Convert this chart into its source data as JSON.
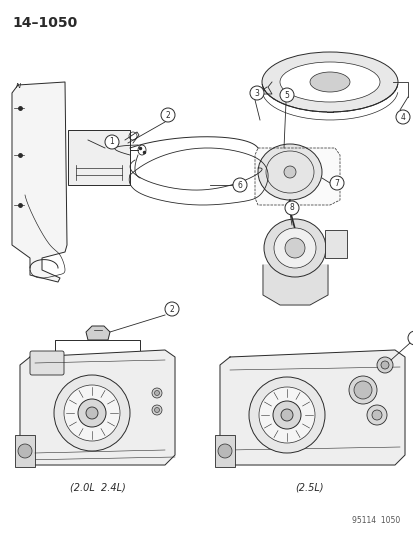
{
  "title": "14–1050",
  "background_color": "#ffffff",
  "line_color": "#2a2a2a",
  "footer_text": "95114  1050",
  "bottom_left_label": "(2.0L  2.4L)",
  "bottom_right_label": "(2.5L)",
  "fig_w": 4.14,
  "fig_h": 5.33,
  "dpi": 100
}
